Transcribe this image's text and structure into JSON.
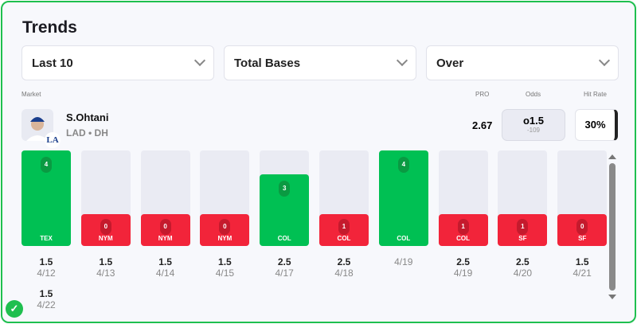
{
  "title": "Trends",
  "filters": [
    "Last 10",
    "Total Bases",
    "Over"
  ],
  "labels": {
    "market": "Market",
    "pro": "PRO",
    "odds": "Odds",
    "hit_rate": "Hit Rate"
  },
  "player": {
    "name": "S.Ohtani",
    "team_pos": "LAD • DH",
    "team_logo": "LA"
  },
  "pro_value": "2.67",
  "odds": {
    "line": "o1.5",
    "price": "-109"
  },
  "hit_rate": "30%",
  "colors": {
    "hit": "#00c053",
    "miss": "#f2243a",
    "border": "#1fbf4f"
  },
  "games": [
    {
      "value": 4,
      "opp": "TEX",
      "line": "1.5",
      "date": "4/12",
      "hit": true
    },
    {
      "value": 0,
      "opp": "NYM",
      "line": "1.5",
      "date": "4/13",
      "hit": false
    },
    {
      "value": 0,
      "opp": "NYM",
      "line": "1.5",
      "date": "4/14",
      "hit": false
    },
    {
      "value": 0,
      "opp": "NYM",
      "line": "1.5",
      "date": "4/15",
      "hit": false
    },
    {
      "value": 3,
      "opp": "COL",
      "line": "2.5",
      "date": "4/17",
      "hit": true
    },
    {
      "value": 1,
      "opp": "COL",
      "line": "2.5",
      "date": "4/18",
      "hit": false
    },
    {
      "value": 4,
      "opp": "COL",
      "line": "",
      "date": "4/19",
      "hit": true
    },
    {
      "value": 1,
      "opp": "COL",
      "line": "2.5",
      "date": "4/19",
      "hit": false
    },
    {
      "value": 1,
      "opp": "SF",
      "line": "2.5",
      "date": "4/20",
      "hit": false
    },
    {
      "value": 0,
      "opp": "SF",
      "line": "1.5",
      "date": "4/21",
      "hit": false
    }
  ],
  "extra": {
    "line": "1.5",
    "date": "4/22"
  }
}
